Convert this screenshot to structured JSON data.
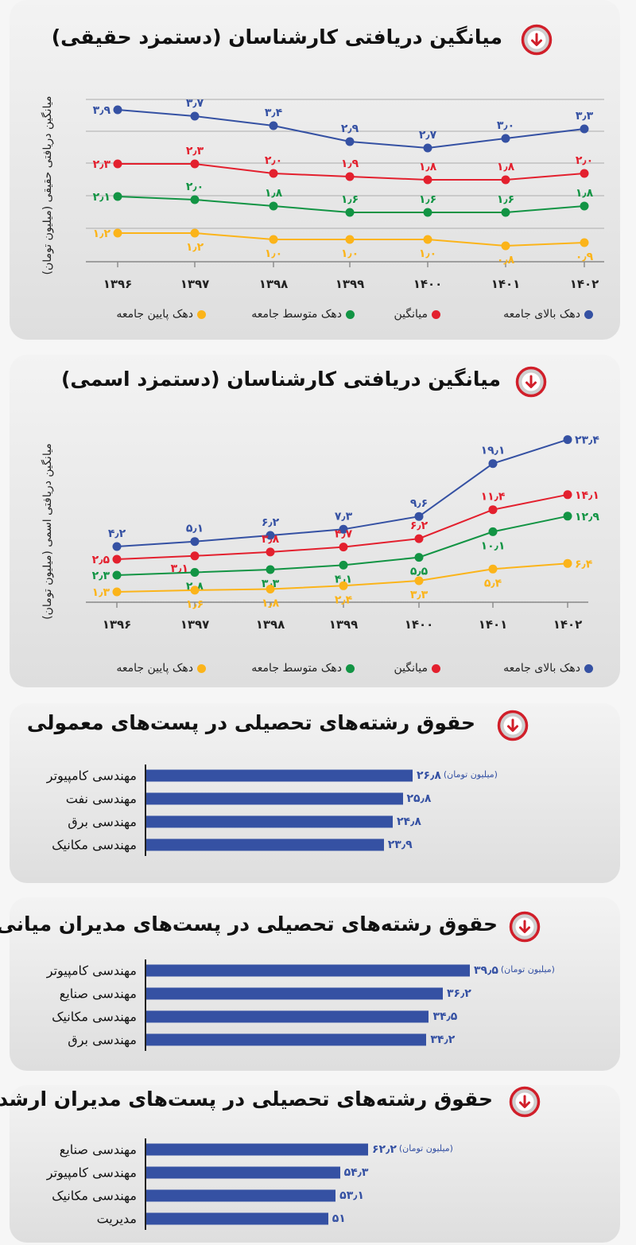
{
  "chart_data": [
    {
      "type": "line",
      "title": "میانگین دریافتی کارشناسان (دستمزد حقیقی)",
      "ylabel": "میانگین دریافتی حقیقی (میلیون تومان)",
      "categories": [
        "۱۳۹۶",
        "۱۳۹۷",
        "۱۳۹۸",
        "۱۳۹۹",
        "۱۴۰۰",
        "۱۴۰۱",
        "۱۴۰۲"
      ],
      "x": [
        1396,
        1397,
        1398,
        1399,
        1400,
        1401,
        1402
      ],
      "grid": true,
      "legend": "bottom",
      "series": [
        {
          "name": "دهک بالای جامعه",
          "color": "#3551a3",
          "values": [
            3.9,
            3.7,
            3.4,
            2.9,
            2.7,
            3.0,
            3.3
          ],
          "labels": [
            "۳٫۹",
            "۳٫۷",
            "۳٫۴",
            "۲٫۹",
            "۲٫۷",
            "۳٫۰",
            "۳٫۳"
          ]
        },
        {
          "name": "میانگین",
          "color": "#e3202e",
          "values": [
            2.3,
            2.3,
            2.0,
            1.9,
            1.8,
            1.8,
            2.0
          ],
          "labels": [
            "۲٫۳",
            "۲٫۳",
            "۲٫۰",
            "۱٫۹",
            "۱٫۸",
            "۱٫۸",
            "۲٫۰"
          ]
        },
        {
          "name": "دهک متوسط جامعه",
          "color": "#129444",
          "values": [
            2.1,
            2.0,
            1.8,
            1.6,
            1.6,
            1.6,
            1.8
          ],
          "labels": [
            "۲٫۱",
            "۲٫۰",
            "۱٫۸",
            "۱٫۶",
            "۱٫۶",
            "۱٫۶",
            "۱٫۸"
          ]
        },
        {
          "name": "دهک پایین جامعه",
          "color": "#fbb41a",
          "values": [
            1.2,
            1.2,
            1.0,
            1.0,
            1.0,
            0.8,
            0.9
          ],
          "labels": [
            "۱٫۲",
            "۱٫۲",
            "۱٫۰",
            "۱٫۰",
            "۱٫۰",
            "۰٫۸",
            "۰٫۹"
          ]
        }
      ]
    },
    {
      "type": "line",
      "title": "میانگین دریافتی کارشناسان (دستمزد اسمی)",
      "ylabel": "میانگین دریافتی اسمی (میلیون تومان)",
      "categories": [
        "۱۳۹۶",
        "۱۳۹۷",
        "۱۳۹۸",
        "۱۳۹۹",
        "۱۴۰۰",
        "۱۴۰۱",
        "۱۴۰۲"
      ],
      "x": [
        1396,
        1397,
        1398,
        1399,
        1400,
        1401,
        1402
      ],
      "grid": false,
      "legend": "bottom",
      "series": [
        {
          "name": "دهک بالای جامعه",
          "color": "#3551a3",
          "values": [
            4.2,
            5.1,
            6.2,
            7.3,
            9.6,
            19.1,
            23.4
          ],
          "labels": [
            "۴٫۲",
            "۵٫۱",
            "۶٫۲",
            "۷٫۳",
            "۹٫۶",
            "۱۹٫۱",
            "۲۳٫۴"
          ]
        },
        {
          "name": "میانگین",
          "color": "#e3202e",
          "values": [
            2.5,
            3.1,
            3.8,
            4.7,
            6.2,
            11.4,
            14.1
          ],
          "labels": [
            "۲٫۵",
            "۳٫۱",
            "۳٫۸",
            "۴٫۷",
            "۶٫۲",
            "۱۱٫۴",
            "۱۴٫۱"
          ]
        },
        {
          "name": "دهک متوسط جامعه",
          "color": "#129444",
          "values": [
            2.3,
            2.8,
            3.3,
            4.1,
            5.5,
            10.1,
            12.9
          ],
          "labels": [
            "۲٫۳",
            "۲٫۸",
            "۳٫۳",
            "۴٫۱",
            "۵٫۵",
            "۱۰٫۱",
            "۱۲٫۹"
          ]
        },
        {
          "name": "دهک پایین جامعه",
          "color": "#fbb41a",
          "values": [
            1.3,
            1.6,
            1.8,
            2.4,
            3.3,
            5.4,
            6.4
          ],
          "labels": [
            "۱٫۳",
            "۱٫۶",
            "۱٫۸",
            "۲٫۴",
            "۳٫۳",
            "۵٫۴",
            "۶٫۴"
          ]
        }
      ]
    },
    {
      "type": "bar",
      "title": "حقوق رشته‌های تحصیلی در پست‌های معمولی",
      "unit": "(میلیون تومان)",
      "categories": [
        "مهندسی کامپیوتر",
        "مهندسی نفت",
        "مهندسی برق",
        "مهندسی مکانیک"
      ],
      "values": [
        26.8,
        25.8,
        24.8,
        23.9
      ],
      "labels": [
        "۲۶٫۸",
        "۲۵٫۸",
        "۲۴٫۸",
        "۲۳٫۹"
      ],
      "color": "#3551a3"
    },
    {
      "type": "bar",
      "title": "حقوق رشته‌های تحصیلی در پست‌های مدیران میانی",
      "unit": "(میلیون تومان)",
      "categories": [
        "مهندسی کامپیوتر",
        "مهندسی صنایع",
        "مهندسی مکانیک",
        "مهندسی برق"
      ],
      "values": [
        39.5,
        36.2,
        34.5,
        34.2
      ],
      "labels": [
        "۳۹٫۵",
        "۳۶٫۲",
        "۳۴٫۵",
        "۳۴٫۲"
      ],
      "color": "#3551a3"
    },
    {
      "type": "bar",
      "title": "حقوق رشته‌های تحصیلی در پست‌های مدیران ارشد",
      "unit": "(میلیون تومان)",
      "categories": [
        "مهندسی صنایع",
        "مهندسی کامپیوتر",
        "مهندسی مکانیک",
        "مدیریت"
      ],
      "values": [
        62.2,
        54.3,
        53.1,
        51
      ],
      "labels": [
        "۶۲٫۲",
        "۵۴٫۳",
        "۵۳٫۱",
        "۵۱"
      ],
      "color": "#3551a3"
    }
  ]
}
